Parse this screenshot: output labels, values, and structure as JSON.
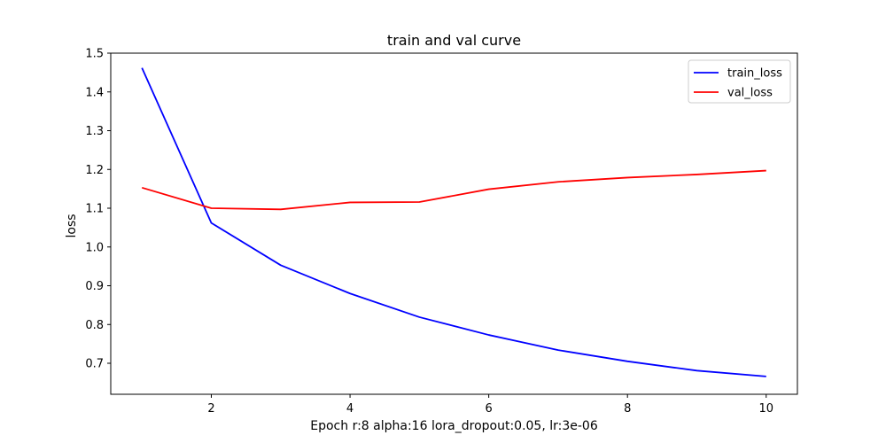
{
  "chart_data": {
    "type": "line",
    "title": "train and val curve",
    "xlabel": "Epoch  r:8 alpha:16 lora_dropout:0.05, lr:3e-06",
    "ylabel": "loss",
    "xlim": [
      0.55,
      10.45
    ],
    "ylim": [
      0.62,
      1.5
    ],
    "xticks": [
      2,
      4,
      6,
      8,
      10
    ],
    "yticks": [
      0.7,
      0.8,
      0.9,
      1.0,
      1.1,
      1.2,
      1.3,
      1.4,
      1.5
    ],
    "xtick_labels": [
      "2",
      "4",
      "6",
      "8",
      "10"
    ],
    "ytick_labels": [
      "0.7",
      "0.8",
      "0.9",
      "1.0",
      "1.1",
      "1.2",
      "1.3",
      "1.4",
      "1.5"
    ],
    "grid": false,
    "legend_position": "top-right",
    "x": [
      1,
      2,
      3,
      4,
      5,
      6,
      7,
      8,
      9,
      10
    ],
    "series": [
      {
        "name": "train_loss",
        "color": "#0000ff",
        "values": [
          1.462,
          1.062,
          0.953,
          0.88,
          0.819,
          0.773,
          0.734,
          0.705,
          0.681,
          0.666
        ]
      },
      {
        "name": "val_loss",
        "color": "#ff0000",
        "values": [
          1.153,
          1.1,
          1.097,
          1.115,
          1.116,
          1.149,
          1.168,
          1.179,
          1.187,
          1.197
        ]
      }
    ]
  }
}
